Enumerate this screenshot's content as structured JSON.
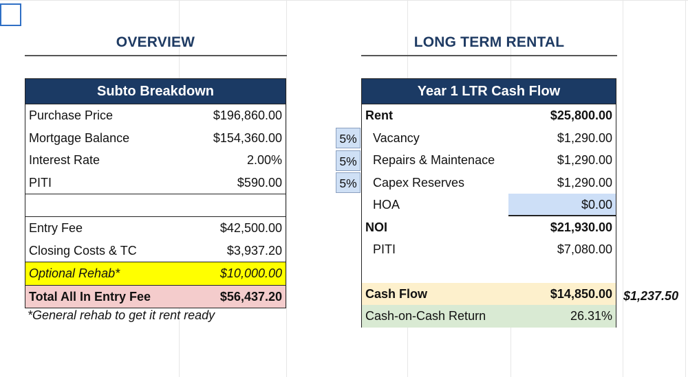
{
  "overview": {
    "title": "OVERVIEW",
    "table_title": "Subto Breakdown",
    "rows_top": [
      {
        "label": "Purchase Price",
        "value": "$196,860.00"
      },
      {
        "label": "Mortgage Balance",
        "value": "$154,360.00"
      },
      {
        "label": "Interest Rate",
        "value": "2.00%"
      },
      {
        "label": "PITI",
        "value": "$590.00"
      }
    ],
    "rows_bottom": [
      {
        "label": "Entry Fee",
        "value": "$42,500.00"
      },
      {
        "label": "Closing Costs & TC",
        "value": "$3,937.20"
      },
      {
        "label": "Optional Rehab*",
        "value": "$10,000.00"
      },
      {
        "label": "Total All In Entry Fee",
        "value": "$56,437.20"
      }
    ],
    "note": "*General rehab to get it rent ready"
  },
  "ltr": {
    "title": "LONG TERM RENTAL",
    "table_title": "Year 1 LTR Cash Flow",
    "rent": {
      "label": "Rent",
      "value": "$25,800.00"
    },
    "vacancy": {
      "pct": "5%",
      "label": "Vacancy",
      "value": "$1,290.00"
    },
    "repairs": {
      "pct": "5%",
      "label": "Repairs & Maintenace",
      "value": "$1,290.00"
    },
    "capex": {
      "pct": "5%",
      "label": "Capex Reserves",
      "value": "$1,290.00"
    },
    "hoa": {
      "label": "HOA",
      "value": "$0.00"
    },
    "noi": {
      "label": "NOI",
      "value": "$21,930.00"
    },
    "piti": {
      "label": "PITI",
      "value": "$7,080.00"
    },
    "cash_flow": {
      "label": "Cash Flow",
      "value": "$14,850.00",
      "monthly": "$1,237.50"
    },
    "coc": {
      "label": "Cash-on-Cash Return",
      "value": "26.31%"
    }
  }
}
